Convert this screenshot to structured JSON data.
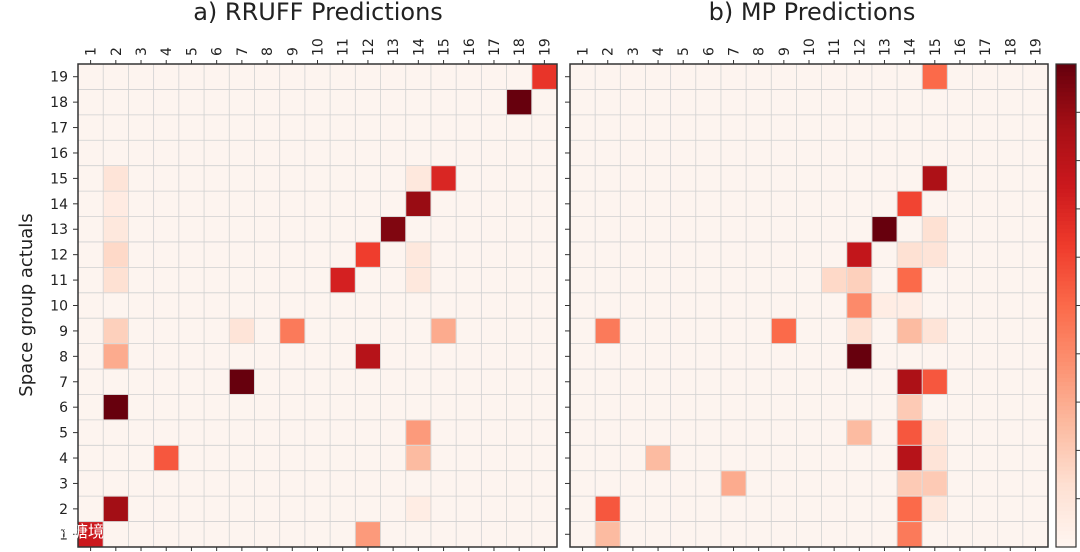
{
  "chart_data": [
    {
      "type": "heatmap",
      "title": "a) RRUFF Predictions",
      "ylabel": "Space group actuals",
      "xlabel": "",
      "x_categories": [
        "1",
        "2",
        "3",
        "4",
        "5",
        "6",
        "7",
        "8",
        "9",
        "10",
        "11",
        "12",
        "13",
        "14",
        "15",
        "16",
        "17",
        "18",
        "19"
      ],
      "y_categories": [
        "1",
        "2",
        "3",
        "4",
        "5",
        "6",
        "7",
        "8",
        "9",
        "10",
        "11",
        "12",
        "13",
        "14",
        "15",
        "16",
        "17",
        "18",
        "19"
      ],
      "value_range": [
        0,
        1
      ],
      "cells": [
        {
          "actual": 1,
          "predicted": 1,
          "value": 0.75
        },
        {
          "actual": 1,
          "predicted": 12,
          "value": 0.35
        },
        {
          "actual": 2,
          "predicted": 2,
          "value": 0.88
        },
        {
          "actual": 2,
          "predicted": 14,
          "value": 0.05
        },
        {
          "actual": 4,
          "predicted": 4,
          "value": 0.55
        },
        {
          "actual": 4,
          "predicted": 14,
          "value": 0.25
        },
        {
          "actual": 5,
          "predicted": 14,
          "value": 0.35
        },
        {
          "actual": 6,
          "predicted": 2,
          "value": 1.0
        },
        {
          "actual": 7,
          "predicted": 7,
          "value": 1.0
        },
        {
          "actual": 8,
          "predicted": 2,
          "value": 0.3
        },
        {
          "actual": 8,
          "predicted": 12,
          "value": 0.82
        },
        {
          "actual": 9,
          "predicted": 2,
          "value": 0.18
        },
        {
          "actual": 9,
          "predicted": 7,
          "value": 0.1
        },
        {
          "actual": 9,
          "predicted": 9,
          "value": 0.45
        },
        {
          "actual": 9,
          "predicted": 15,
          "value": 0.3
        },
        {
          "actual": 11,
          "predicted": 2,
          "value": 0.12
        },
        {
          "actual": 11,
          "predicted": 11,
          "value": 0.72
        },
        {
          "actual": 11,
          "predicted": 14,
          "value": 0.08
        },
        {
          "actual": 12,
          "predicted": 2,
          "value": 0.15
        },
        {
          "actual": 12,
          "predicted": 12,
          "value": 0.62
        },
        {
          "actual": 12,
          "predicted": 14,
          "value": 0.08
        },
        {
          "actual": 13,
          "predicted": 2,
          "value": 0.08
        },
        {
          "actual": 13,
          "predicted": 13,
          "value": 0.95
        },
        {
          "actual": 14,
          "predicted": 2,
          "value": 0.06
        },
        {
          "actual": 14,
          "predicted": 14,
          "value": 0.9
        },
        {
          "actual": 15,
          "predicted": 2,
          "value": 0.1
        },
        {
          "actual": 15,
          "predicted": 14,
          "value": 0.08
        },
        {
          "actual": 15,
          "predicted": 15,
          "value": 0.7
        },
        {
          "actual": 18,
          "predicted": 18,
          "value": 1.0
        },
        {
          "actual": 19,
          "predicted": 19,
          "value": 0.65
        }
      ]
    },
    {
      "type": "heatmap",
      "title": "b) MP Predictions",
      "xlabel": "",
      "x_categories": [
        "1",
        "2",
        "3",
        "4",
        "5",
        "6",
        "7",
        "8",
        "9",
        "10",
        "11",
        "12",
        "13",
        "14",
        "15",
        "16",
        "17",
        "18",
        "19"
      ],
      "y_categories": [
        "1",
        "2",
        "3",
        "4",
        "5",
        "6",
        "7",
        "8",
        "9",
        "10",
        "11",
        "12",
        "13",
        "14",
        "15",
        "16",
        "17",
        "18",
        "19"
      ],
      "value_range": [
        0,
        1
      ],
      "cells": [
        {
          "actual": 1,
          "predicted": 2,
          "value": 0.25
        },
        {
          "actual": 1,
          "predicted": 14,
          "value": 0.45
        },
        {
          "actual": 2,
          "predicted": 2,
          "value": 0.55
        },
        {
          "actual": 2,
          "predicted": 14,
          "value": 0.5
        },
        {
          "actual": 2,
          "predicted": 15,
          "value": 0.08
        },
        {
          "actual": 3,
          "predicted": 7,
          "value": 0.3
        },
        {
          "actual": 3,
          "predicted": 14,
          "value": 0.2
        },
        {
          "actual": 3,
          "predicted": 15,
          "value": 0.2
        },
        {
          "actual": 4,
          "predicted": 4,
          "value": 0.25
        },
        {
          "actual": 4,
          "predicted": 14,
          "value": 0.82
        },
        {
          "actual": 4,
          "predicted": 15,
          "value": 0.1
        },
        {
          "actual": 5,
          "predicted": 12,
          "value": 0.25
        },
        {
          "actual": 5,
          "predicted": 14,
          "value": 0.55
        },
        {
          "actual": 5,
          "predicted": 15,
          "value": 0.08
        },
        {
          "actual": 6,
          "predicted": 14,
          "value": 0.2
        },
        {
          "actual": 7,
          "predicted": 14,
          "value": 0.85
        },
        {
          "actual": 7,
          "predicted": 15,
          "value": 0.55
        },
        {
          "actual": 8,
          "predicted": 12,
          "value": 1.0
        },
        {
          "actual": 9,
          "predicted": 2,
          "value": 0.45
        },
        {
          "actual": 9,
          "predicted": 9,
          "value": 0.5
        },
        {
          "actual": 9,
          "predicted": 12,
          "value": 0.12
        },
        {
          "actual": 9,
          "predicted": 14,
          "value": 0.25
        },
        {
          "actual": 9,
          "predicted": 15,
          "value": 0.1
        },
        {
          "actual": 10,
          "predicted": 12,
          "value": 0.4
        },
        {
          "actual": 10,
          "predicted": 13,
          "value": 0.05
        },
        {
          "actual": 10,
          "predicted": 14,
          "value": 0.05
        },
        {
          "actual": 11,
          "predicted": 11,
          "value": 0.15
        },
        {
          "actual": 11,
          "predicted": 12,
          "value": 0.18
        },
        {
          "actual": 11,
          "predicted": 14,
          "value": 0.5
        },
        {
          "actual": 12,
          "predicted": 12,
          "value": 0.78
        },
        {
          "actual": 12,
          "predicted": 14,
          "value": 0.12
        },
        {
          "actual": 12,
          "predicted": 15,
          "value": 0.1
        },
        {
          "actual": 13,
          "predicted": 13,
          "value": 1.0
        },
        {
          "actual": 13,
          "predicted": 15,
          "value": 0.12
        },
        {
          "actual": 14,
          "predicted": 14,
          "value": 0.6
        },
        {
          "actual": 15,
          "predicted": 15,
          "value": 0.85
        },
        {
          "actual": 19,
          "predicted": 15,
          "value": 0.5
        }
      ]
    }
  ],
  "colors": {
    "background": "#fdf4ef",
    "low": "#fff5f0",
    "high": "#67000d",
    "grid": "#d0d0d0",
    "axis": "#333333"
  },
  "colorbar": {
    "orientation": "vertical",
    "position": "right"
  },
  "watermark": {
    "text": "大数瑭境"
  }
}
